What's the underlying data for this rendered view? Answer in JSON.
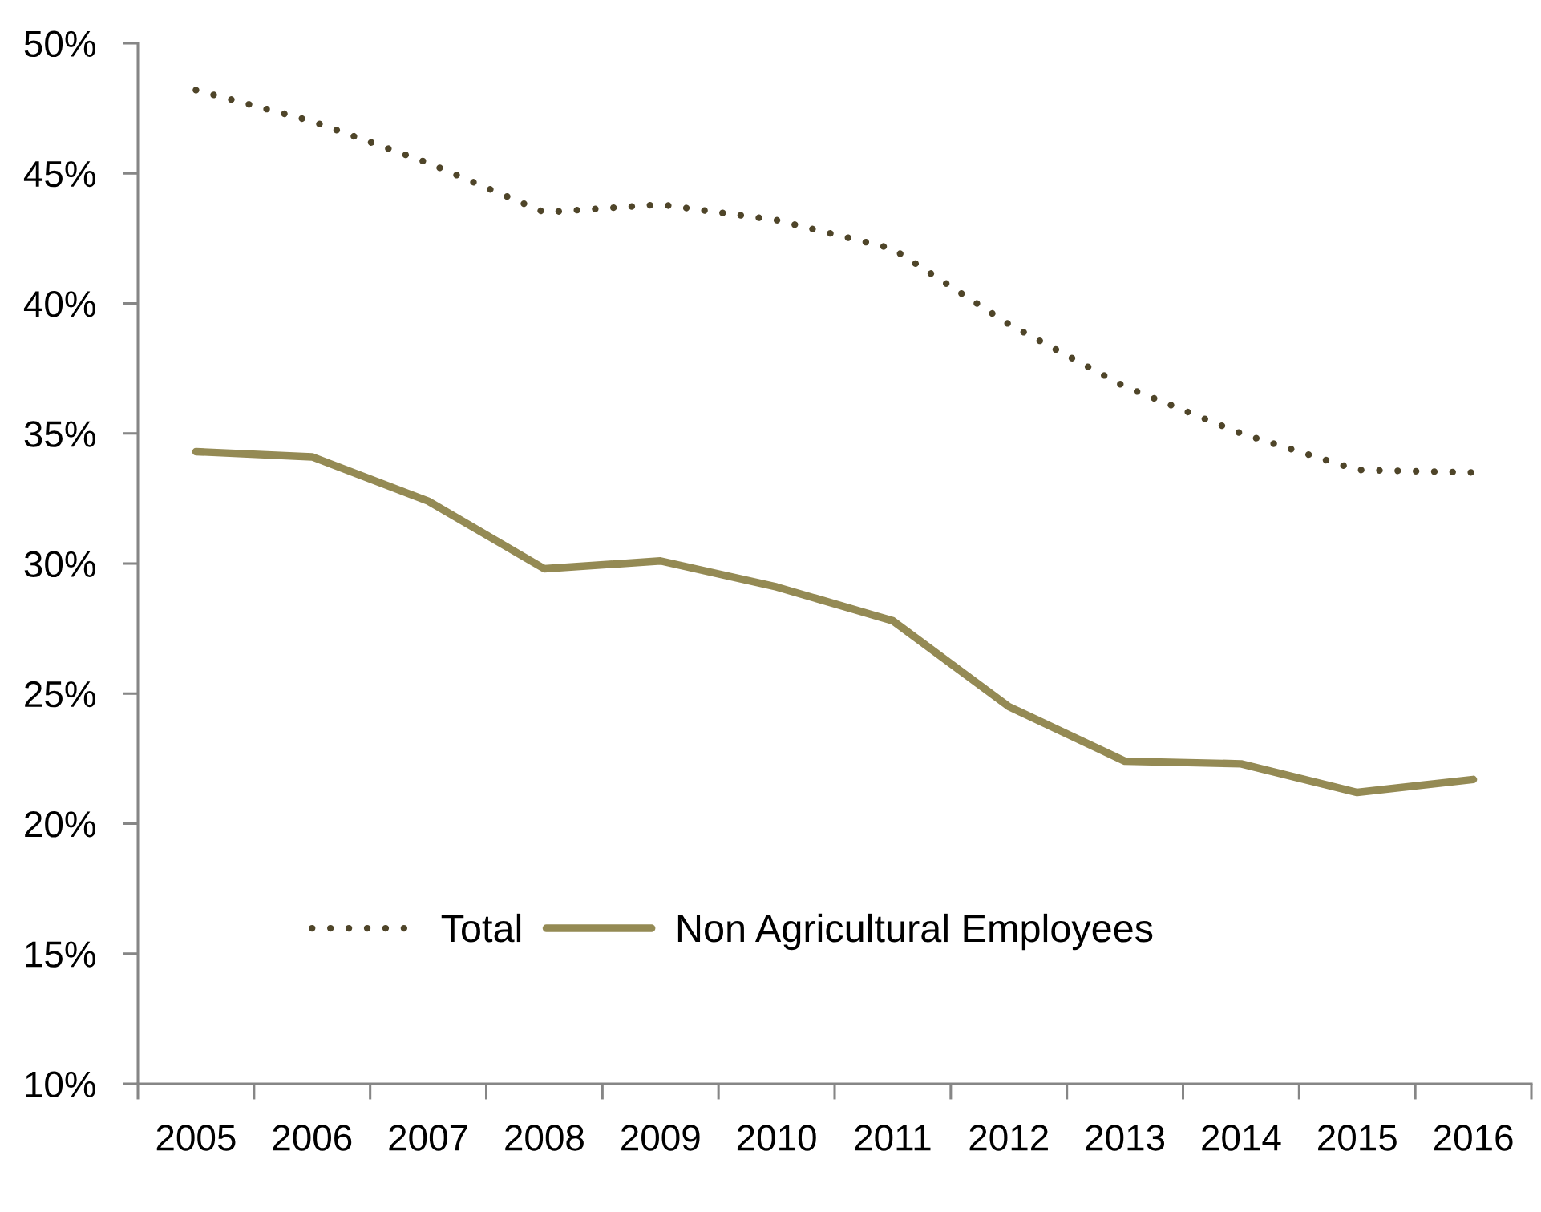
{
  "chart_data": {
    "type": "line",
    "categories": [
      "2005",
      "2006",
      "2007",
      "2008",
      "2009",
      "2010",
      "2011",
      "2012",
      "2013",
      "2014",
      "2015",
      "2016"
    ],
    "series": [
      {
        "name": "Total",
        "color": "#4f4529",
        "line_style": "dotted",
        "values": [
          48.2,
          47.0,
          45.4,
          43.5,
          43.8,
          43.2,
          42.1,
          39.2,
          36.8,
          35.0,
          33.6,
          33.5
        ]
      },
      {
        "name": "Non Agricultural Employees",
        "color": "#948a54",
        "line_style": "solid",
        "values": [
          34.3,
          34.1,
          32.4,
          29.8,
          30.1,
          29.1,
          27.8,
          24.5,
          22.4,
          22.3,
          21.2,
          21.7
        ]
      }
    ],
    "ylim": [
      10,
      50
    ],
    "yticks": [
      {
        "value": 10,
        "label": "10%"
      },
      {
        "value": 15,
        "label": "15%"
      },
      {
        "value": 20,
        "label": "20%"
      },
      {
        "value": 25,
        "label": "25%"
      },
      {
        "value": 30,
        "label": "30%"
      },
      {
        "value": 35,
        "label": "35%"
      },
      {
        "value": 40,
        "label": "40%"
      },
      {
        "value": 45,
        "label": "45%"
      },
      {
        "value": 50,
        "label": "50%"
      }
    ],
    "legend": "bottom"
  }
}
